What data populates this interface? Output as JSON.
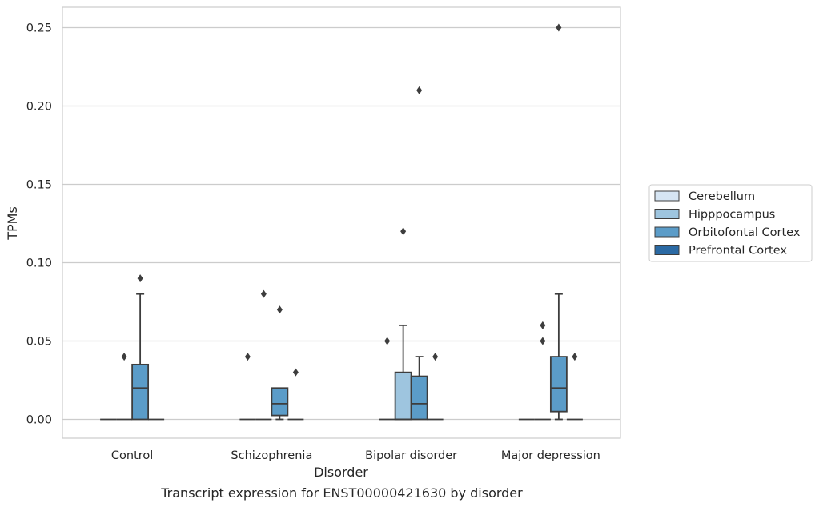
{
  "chart_data": {
    "type": "box",
    "caption": "Transcript expression for ENST00000421630 by disorder",
    "xlabel": "Disorder",
    "ylabel": "TPMs",
    "ylim": [
      -0.012,
      0.263
    ],
    "yticks": [
      "0.00",
      "0.05",
      "0.10",
      "0.15",
      "0.20",
      "0.25"
    ],
    "ytick_values": [
      0.0,
      0.05,
      0.1,
      0.15,
      0.2,
      0.25
    ],
    "grid": true,
    "legend_position": "right",
    "categories": [
      "Control",
      "Schizophrenia",
      "Bipolar disorder",
      "Major depression"
    ],
    "series": [
      {
        "name": "Cerebellum",
        "color": "#d6e5f3",
        "boxes": [
          {
            "q1": 0,
            "median": 0,
            "q3": 0,
            "whislo": 0,
            "whishi": 0,
            "fliers": []
          },
          {
            "q1": 0,
            "median": 0,
            "q3": 0,
            "whislo": 0,
            "whishi": 0,
            "fliers": [
              0.04
            ]
          },
          {
            "q1": 0,
            "median": 0,
            "q3": 0,
            "whislo": 0,
            "whishi": 0,
            "fliers": [
              0.05
            ]
          },
          {
            "q1": 0,
            "median": 0,
            "q3": 0,
            "whislo": 0,
            "whishi": 0,
            "fliers": []
          }
        ]
      },
      {
        "name": "Hipppocampus",
        "color": "#9ec5df",
        "boxes": [
          {
            "q1": 0,
            "median": 0,
            "q3": 0,
            "whislo": 0,
            "whishi": 0,
            "fliers": [
              0.04
            ]
          },
          {
            "q1": 0,
            "median": 0,
            "q3": 0,
            "whislo": 0,
            "whishi": 0,
            "fliers": [
              0.08
            ]
          },
          {
            "q1": 0,
            "median": 0,
            "q3": 0.03,
            "whislo": 0,
            "whishi": 0.06,
            "fliers": [
              0.12
            ]
          },
          {
            "q1": 0,
            "median": 0,
            "q3": 0,
            "whislo": 0,
            "whishi": 0,
            "fliers": [
              0.05,
              0.06
            ]
          }
        ]
      },
      {
        "name": "Orbitofontal Cortex",
        "color": "#5b9cc8",
        "boxes": [
          {
            "q1": 0,
            "median": 0.02,
            "q3": 0.035,
            "whislo": 0,
            "whishi": 0.08,
            "fliers": [
              0.09
            ]
          },
          {
            "q1": 0.0025,
            "median": 0.01,
            "q3": 0.02,
            "whislo": 0,
            "whishi": 0.02,
            "fliers": [
              0.07
            ]
          },
          {
            "q1": 0,
            "median": 0.01,
            "q3": 0.0275,
            "whislo": 0,
            "whishi": 0.04,
            "fliers": [
              0.21
            ]
          },
          {
            "q1": 0.005,
            "median": 0.02,
            "q3": 0.04,
            "whislo": 0,
            "whishi": 0.08,
            "fliers": [
              0.25
            ]
          }
        ]
      },
      {
        "name": "Prefrontal Cortex",
        "color": "#2b6aa4",
        "boxes": [
          {
            "q1": 0,
            "median": 0,
            "q3": 0,
            "whislo": 0,
            "whishi": 0,
            "fliers": []
          },
          {
            "q1": 0,
            "median": 0,
            "q3": 0,
            "whislo": 0,
            "whishi": 0,
            "fliers": [
              0.03
            ]
          },
          {
            "q1": 0,
            "median": 0,
            "q3": 0,
            "whislo": 0,
            "whishi": 0,
            "fliers": [
              0.04
            ]
          },
          {
            "q1": 0,
            "median": 0,
            "q3": 0,
            "whislo": 0,
            "whishi": 0,
            "fliers": [
              0.04
            ]
          }
        ]
      }
    ]
  }
}
